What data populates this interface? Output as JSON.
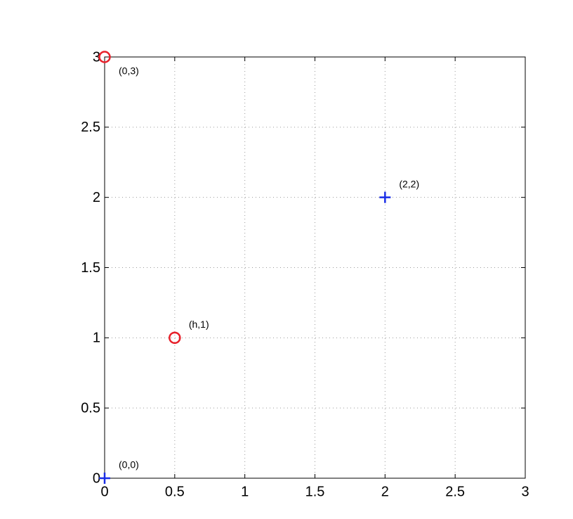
{
  "chart_data": {
    "type": "scatter",
    "xlim": [
      0,
      3
    ],
    "ylim": [
      0,
      3
    ],
    "xticks": [
      0,
      0.5,
      1,
      1.5,
      2,
      2.5,
      3
    ],
    "yticks": [
      0,
      0.5,
      1,
      1.5,
      2,
      2.5,
      3
    ],
    "grid": true,
    "series": [
      {
        "color": "#1a2ee6",
        "marker": "plus",
        "x": [
          0,
          2
        ],
        "values": [
          0,
          2
        ],
        "labels": [
          "(0,0)",
          "(2,2)"
        ]
      },
      {
        "color": "#e8202a",
        "marker": "circle",
        "x": [
          0,
          0.5
        ],
        "values": [
          3,
          1
        ],
        "labels": [
          "(0,3)",
          "(h,1)"
        ]
      }
    ]
  }
}
